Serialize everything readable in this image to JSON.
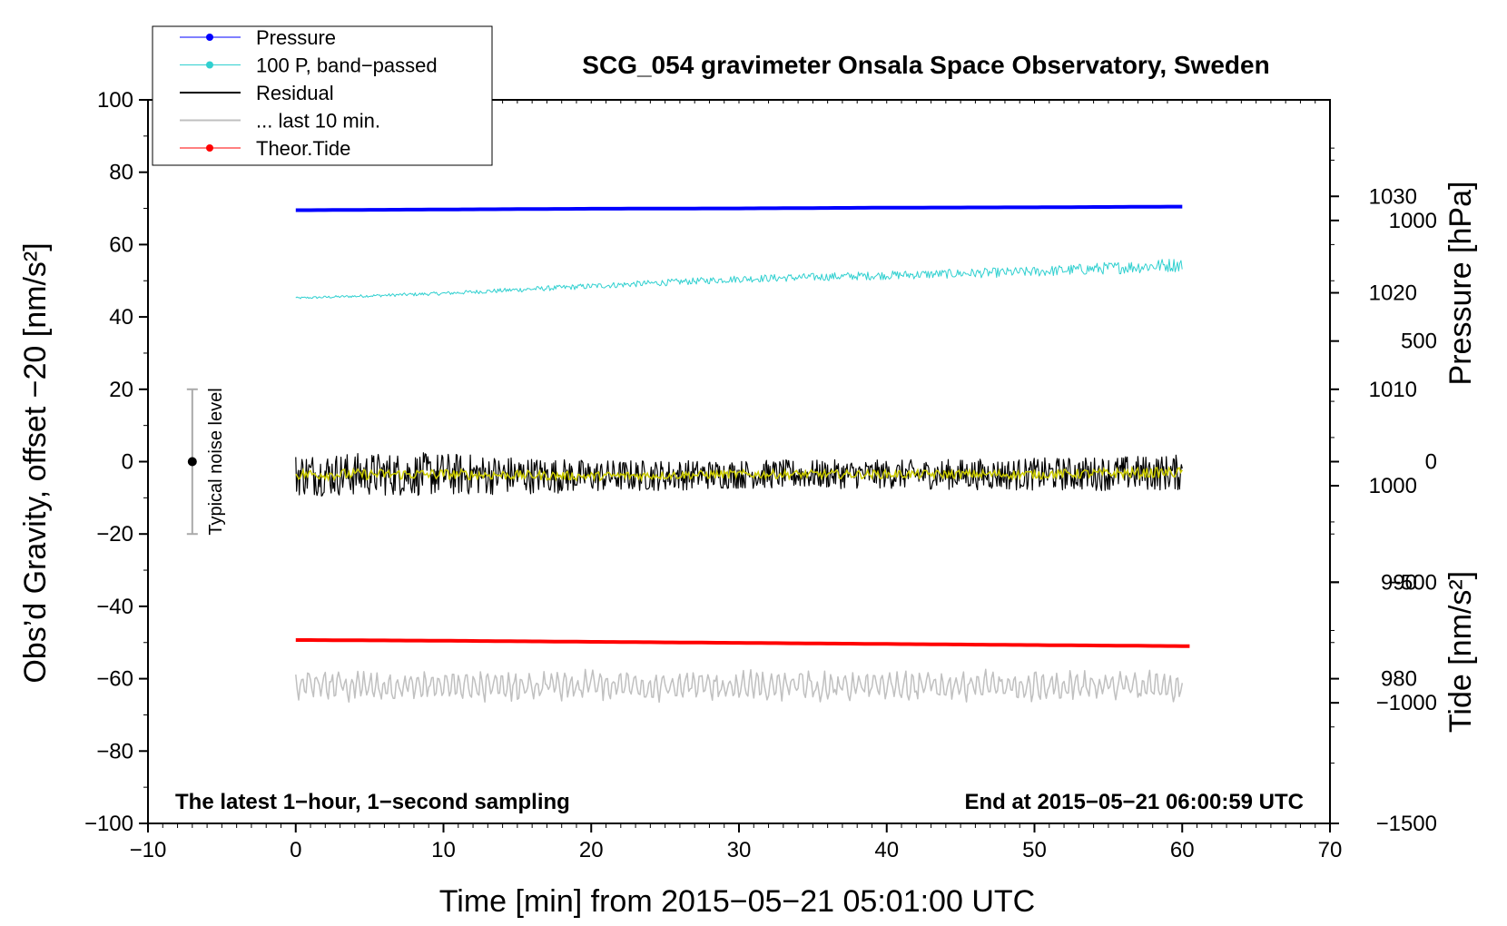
{
  "chart_data": {
    "type": "line",
    "title": "SCG_054 gravimeter Onsala Space Observatory, Sweden",
    "xlabel": "Time [min] from 2015−05−21 05:01:00 UTC",
    "ylabel_left": "Obs’d Gravity, offset −20 [nm/s²]",
    "ylabel_right_pressure": "Pressure [hPa]",
    "ylabel_right_tide": "Tide [nm/s²]",
    "xlim": [
      -10,
      70
    ],
    "ylim": [
      -100,
      100
    ],
    "pressure_ylim": [
      965,
      1040
    ],
    "tide_ylim": [
      -1500,
      1500
    ],
    "grid": false,
    "legend_position": "top-left",
    "x_ticks": [
      -10,
      0,
      10,
      20,
      30,
      40,
      50,
      60,
      70
    ],
    "x_tick_labels": [
      "−10",
      "0",
      "10",
      "20",
      "30",
      "40",
      "50",
      "60",
      "70"
    ],
    "y_ticks": [
      100,
      80,
      60,
      40,
      20,
      0,
      -20,
      -40,
      -60,
      -80,
      -100
    ],
    "y_tick_labels": [
      "100",
      "80",
      "60",
      "40",
      "20",
      "0",
      "−20",
      "−40",
      "−60",
      "−80",
      "−100"
    ],
    "pressure_ticks": [
      1030,
      1020,
      1010,
      1000,
      990,
      980
    ],
    "pressure_tick_labels": [
      "1030",
      "1020",
      "1010",
      "1000",
      "990",
      "980"
    ],
    "tide_ticks": [
      1000,
      500,
      0,
      -500,
      -1000,
      -1500
    ],
    "tide_tick_labels": [
      "1000",
      "500",
      "0",
      "−500",
      "−1000",
      "−1500"
    ],
    "series": [
      {
        "name": "Pressure",
        "color": "#0000ff",
        "axis": "left",
        "x": [
          0,
          10,
          20,
          30,
          40,
          50,
          60
        ],
        "values": [
          69.5,
          69.7,
          69.9,
          70.0,
          70.2,
          70.3,
          70.5
        ]
      },
      {
        "name": "100 P, band−passed",
        "color": "#30d0d0",
        "axis": "left",
        "x": [
          0,
          10,
          20,
          30,
          40,
          50,
          60
        ],
        "values": [
          45.2,
          46.5,
          48.5,
          50.5,
          51.5,
          52.5,
          54.5
        ],
        "noise_amplitude": [
          0.3,
          0.5,
          0.8,
          1.0,
          1.2,
          1.4,
          2.0
        ]
      },
      {
        "name": "Residual",
        "color": "#000000",
        "axis": "left",
        "x": [
          0,
          10,
          20,
          30,
          40,
          50,
          60
        ],
        "values": [
          -3.5,
          -3.5,
          -4,
          -3.5,
          -3.5,
          -3.5,
          -3
        ],
        "noise_amplitude": [
          6,
          6,
          4.5,
          4,
          4,
          4.5,
          5
        ]
      },
      {
        "name": "... last 10 min.",
        "color": "#c0c0c0",
        "axis": "left",
        "x": [
          0,
          10,
          20,
          30,
          40,
          50,
          60
        ],
        "values": [
          -62,
          -62,
          -62,
          -62,
          -62,
          -62,
          -62
        ],
        "noise_amplitude": [
          4,
          4,
          4,
          4,
          4,
          4,
          4
        ]
      },
      {
        "name": "Theor.Tide",
        "color": "#ff0000",
        "axis": "left",
        "x": [
          0,
          10,
          20,
          30,
          40,
          50,
          60.5
        ],
        "values": [
          -49.3,
          -49.5,
          -49.8,
          -50.1,
          -50.4,
          -50.7,
          -51.0
        ]
      }
    ],
    "filtered_residual": {
      "color": "#cccc00",
      "x": [
        0,
        10,
        20,
        30,
        40,
        50,
        60
      ],
      "values": [
        -3.5,
        -3.5,
        -4,
        -3.5,
        -3.5,
        -3.5,
        -3
      ],
      "noise_amplitude": [
        1.5,
        1.5,
        1.2,
        1.2,
        1.2,
        1.3,
        1.5
      ]
    },
    "noise_bar": {
      "label": "Typical noise level",
      "x": -7,
      "center": 0,
      "low": -20,
      "high": 20
    },
    "annotations": {
      "bottom_left": "The latest 1−hour, 1−second sampling",
      "bottom_right": "End at 2015−05−21 06:00:59 UTC"
    }
  }
}
